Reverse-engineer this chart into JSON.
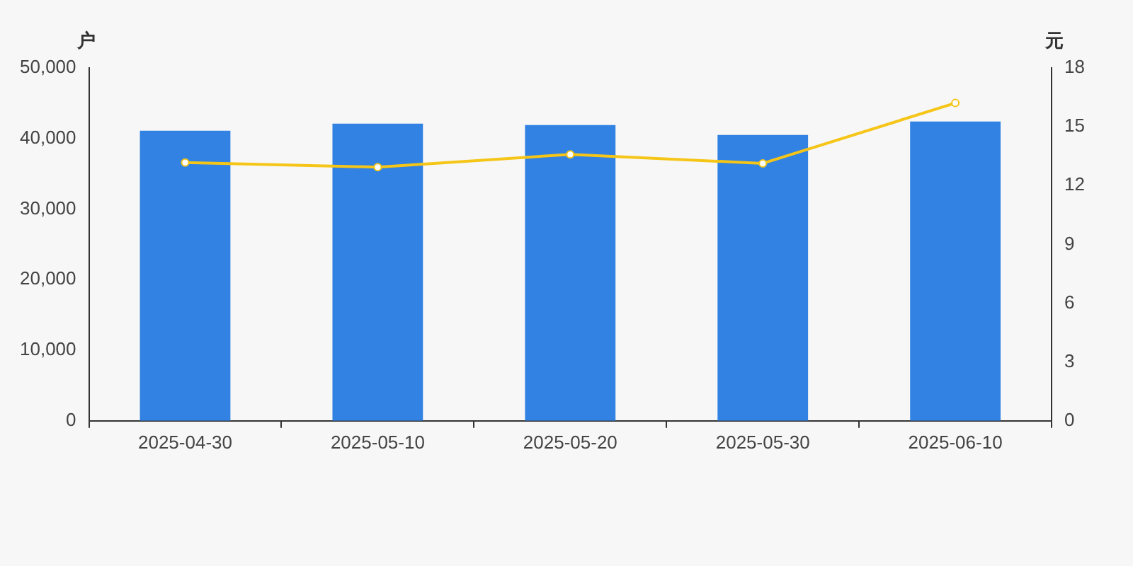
{
  "chart_data": {
    "type": "bar",
    "categories": [
      "2025-04-30",
      "2025-05-10",
      "2025-05-20",
      "2025-05-30",
      "2025-06-10"
    ],
    "ylabel": "户",
    "y2label": "元",
    "ylim": [
      0,
      50000
    ],
    "yticks": [
      0,
      {
        "value": 10000,
        "label": "10,000"
      },
      {
        "value": 20000,
        "label": "20,000"
      },
      {
        "value": 30000,
        "label": "30,000"
      },
      {
        "value": 40000,
        "label": "40,000"
      },
      {
        "value": 50000,
        "label": "50,000"
      }
    ],
    "y2lim": [
      0,
      18
    ],
    "y2ticks": [
      0,
      3,
      6,
      9,
      12,
      15,
      18
    ],
    "grid": false,
    "legend": false,
    "marker": "circle",
    "line_style": "solid",
    "series": [
      {
        "color": "#3182e2",
        "values": [
          41100,
          42100,
          41900,
          40500,
          42400
        ]
      },
      {
        "type": "line",
        "axis": "y2",
        "color": "#f5c518",
        "values": [
          13.17,
          12.94,
          13.59,
          13.13,
          16.21
        ]
      }
    ]
  }
}
